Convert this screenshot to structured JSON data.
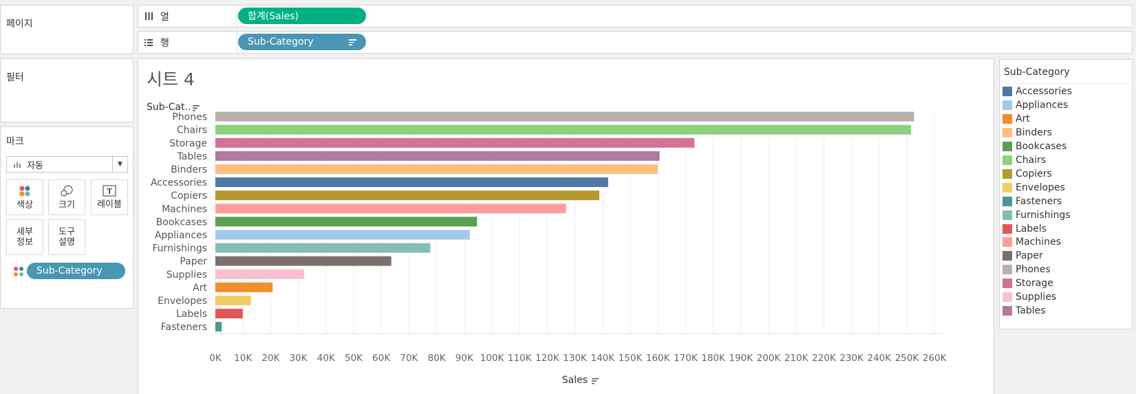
{
  "left_panel": {
    "pages_title": "페이지",
    "filters_title": "필터",
    "marks_title": "마크",
    "mark_type": "자동",
    "buttons": [
      {
        "label": "색상",
        "icon": "color-dots-icon"
      },
      {
        "label": "크기",
        "icon": "size-circles-icon"
      },
      {
        "label": "레이블",
        "icon": "label-t-icon"
      },
      {
        "label": "세부\n정보",
        "icon": "none"
      },
      {
        "label": "도구\n설명",
        "icon": "none"
      }
    ],
    "color_pill": "Sub-Category"
  },
  "shelves": {
    "columns_label": "열",
    "columns_pill": "합계(Sales)",
    "rows_label": "행",
    "rows_pill": "Sub-Category"
  },
  "sheet": {
    "title": "시트 4"
  },
  "chart_data": {
    "type": "bar",
    "orientation": "horizontal",
    "row_header": "Sub-Cat..",
    "xlabel": "Sales",
    "xlim": [
      0,
      265000
    ],
    "x_ticks": [
      0,
      10000,
      20000,
      30000,
      40000,
      50000,
      60000,
      70000,
      80000,
      90000,
      100000,
      110000,
      120000,
      130000,
      140000,
      150000,
      160000,
      170000,
      180000,
      190000,
      200000,
      210000,
      220000,
      230000,
      240000,
      250000,
      260000
    ],
    "x_tick_labels": [
      "0K",
      "10K",
      "20K",
      "30K",
      "40K",
      "50K",
      "60K",
      "70K",
      "80K",
      "90K",
      "100K",
      "110K",
      "120K",
      "130K",
      "140K",
      "150K",
      "160K",
      "170K",
      "180K",
      "190K",
      "200K",
      "210K",
      "220K",
      "230K",
      "240K",
      "250K",
      "260K"
    ],
    "grid": true,
    "categories": [
      "Phones",
      "Chairs",
      "Storage",
      "Tables",
      "Binders",
      "Accessories",
      "Copiers",
      "Machines",
      "Bookcases",
      "Appliances",
      "Furnishings",
      "Paper",
      "Supplies",
      "Art",
      "Envelopes",
      "Labels",
      "Fasteners"
    ],
    "values": [
      252600,
      251500,
      173200,
      160600,
      160000,
      142000,
      138800,
      126800,
      94600,
      92000,
      77700,
      63600,
      32100,
      20700,
      12900,
      9900,
      2300
    ],
    "colors": [
      "#bab0ac",
      "#8cd17d",
      "#d37295",
      "#b07aa1",
      "#ffbe7d",
      "#4e79a7",
      "#b6992d",
      "#ff9d9a",
      "#59a14f",
      "#a0cbe8",
      "#86bcb6",
      "#79706e",
      "#fabfd2",
      "#f28e2b",
      "#f1ce63",
      "#e15759",
      "#499894"
    ]
  },
  "legend": {
    "title": "Sub-Category",
    "items": [
      {
        "label": "Accessories",
        "color": "#4e79a7"
      },
      {
        "label": "Appliances",
        "color": "#a0cbe8"
      },
      {
        "label": "Art",
        "color": "#f28e2b"
      },
      {
        "label": "Binders",
        "color": "#ffbe7d"
      },
      {
        "label": "Bookcases",
        "color": "#59a14f"
      },
      {
        "label": "Chairs",
        "color": "#8cd17d"
      },
      {
        "label": "Copiers",
        "color": "#b6992d"
      },
      {
        "label": "Envelopes",
        "color": "#f1ce63"
      },
      {
        "label": "Fasteners",
        "color": "#499894"
      },
      {
        "label": "Furnishings",
        "color": "#86bcb6"
      },
      {
        "label": "Labels",
        "color": "#e15759"
      },
      {
        "label": "Machines",
        "color": "#ff9d9a"
      },
      {
        "label": "Paper",
        "color": "#79706e"
      },
      {
        "label": "Phones",
        "color": "#bab0ac"
      },
      {
        "label": "Storage",
        "color": "#d37295"
      },
      {
        "label": "Supplies",
        "color": "#fabfd2"
      },
      {
        "label": "Tables",
        "color": "#b07aa1"
      }
    ]
  }
}
